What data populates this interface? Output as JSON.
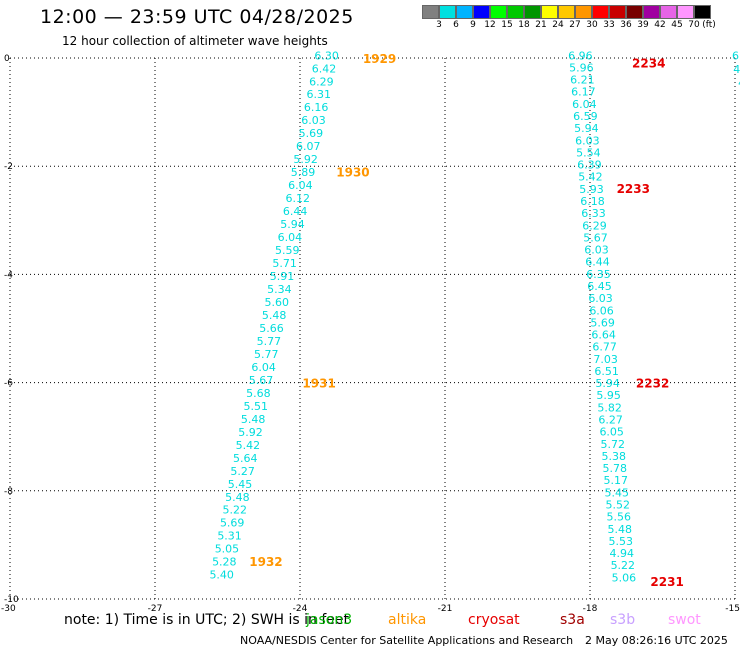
{
  "header": {
    "title": "12:00 — 23:59 UTC 04/28/2025",
    "subtitle": "12 hour collection of altimeter wave heights"
  },
  "legend": {
    "unit": "(ft)",
    "labels": [
      "3",
      "6",
      "9",
      "12",
      "15",
      "18",
      "21",
      "24",
      "27",
      "30",
      "33",
      "36",
      "39",
      "42",
      "45",
      "70"
    ],
    "colors": [
      "#808080",
      "#00e0e0",
      "#00b4ff",
      "#0000ff",
      "#00ff00",
      "#00c800",
      "#009600",
      "#ffff00",
      "#ffc800",
      "#ff9600",
      "#ff0000",
      "#c80000",
      "#780000",
      "#a000a0",
      "#e664e6",
      "#ff96ff",
      "#000000"
    ]
  },
  "axes": {
    "x_ticks": [
      "-30",
      "-27",
      "-24",
      "-21",
      "-18",
      "-15"
    ],
    "y_ticks": [
      "0",
      "-2",
      "-4",
      "-6",
      "-8",
      "-10"
    ],
    "xlim": [
      -30,
      -15
    ],
    "ylim": [
      -10,
      0
    ],
    "grid": true
  },
  "tracks": [
    {
      "name": "left",
      "lon_top": -23.45,
      "lat_top": 0.05,
      "lon_bottom": -25.62,
      "lat_bottom": -9.55,
      "color": "#00dcdc",
      "values": [
        "6.30",
        "6.42",
        "6.29",
        "6.31",
        "6.16",
        "6.03",
        "5.69",
        "6.07",
        "5.92",
        "5.89",
        "6.04",
        "6.12",
        "6.44",
        "5.94",
        "6.04",
        "5.59",
        "5.71",
        "5.91",
        "5.34",
        "5.60",
        "5.48",
        "5.66",
        "5.77",
        "5.77",
        "6.04",
        "5.67",
        "5.68",
        "5.51",
        "5.48",
        "5.92",
        "5.42",
        "5.64",
        "5.27",
        "5.45",
        "5.48",
        "5.22",
        "5.69",
        "5.31",
        "5.05",
        "5.28",
        "5.40"
      ]
    },
    {
      "name": "right",
      "lon_top": -18.2,
      "lat_top": 0.05,
      "lon_bottom": -17.3,
      "lat_bottom": -9.6,
      "color": "#00dcdc",
      "values": [
        "6.96",
        "5.96",
        "6.21",
        "6.17",
        "6.04",
        "6.59",
        "5.94",
        "6.03",
        "5.54",
        "6.39",
        "5.42",
        "5.93",
        "6.18",
        "6.33",
        "6.29",
        "5.67",
        "6.03",
        "6.44",
        "6.35",
        "6.45",
        "6.03",
        "6.06",
        "5.69",
        "6.64",
        "6.77",
        "7.03",
        "6.51",
        "5.94",
        "5.95",
        "5.82",
        "6.27",
        "6.05",
        "5.72",
        "5.38",
        "5.78",
        "5.17",
        "5.45",
        "5.52",
        "5.56",
        "5.48",
        "5.53",
        "4.94",
        "5.22",
        "5.06"
      ]
    },
    {
      "name": "edge",
      "lon_top": -14.88,
      "lat_top": 0.05,
      "lon_bottom": -14.75,
      "lat_bottom": -1.2,
      "color": "#00dcdc",
      "values": [
        "6.1",
        "4.8",
        "4.",
        "5",
        "5",
        "."
      ]
    }
  ],
  "times": [
    {
      "text": "1929",
      "lon": -22.7,
      "lat": 0.0,
      "color": "#ff9600"
    },
    {
      "text": "1930",
      "lon": -23.25,
      "lat": -2.1,
      "color": "#ff9600"
    },
    {
      "text": "1931",
      "lon": -23.95,
      "lat": -6.0,
      "color": "#ff9600"
    },
    {
      "text": "1932",
      "lon": -25.05,
      "lat": -9.3,
      "color": "#ff9600"
    },
    {
      "text": "2234",
      "lon": -17.13,
      "lat": -0.08,
      "color": "#e60000"
    },
    {
      "text": "2233",
      "lon": -17.45,
      "lat": -2.4,
      "color": "#e60000"
    },
    {
      "text": "2232",
      "lon": -17.05,
      "lat": -6.0,
      "color": "#e60000"
    },
    {
      "text": "2231",
      "lon": -16.75,
      "lat": -9.67,
      "color": "#e60000"
    }
  ],
  "footer": {
    "note": "note:  1) Time is in UTC;  2) SWH is in feet",
    "satellites": [
      {
        "name": "jason3",
        "color": "#00b400"
      },
      {
        "name": "altika",
        "color": "#ff9600"
      },
      {
        "name": "cryosat",
        "color": "#e60000"
      },
      {
        "name": "s3a",
        "color": "#a00000"
      },
      {
        "name": "s3b",
        "color": "#c8a0ff"
      },
      {
        "name": "swot",
        "color": "#ff96ff"
      }
    ],
    "credit": "NOAA/NESDIS Center for Satellite Applications and Research",
    "timestamp": "2 May 08:26:16 UTC 2025"
  }
}
